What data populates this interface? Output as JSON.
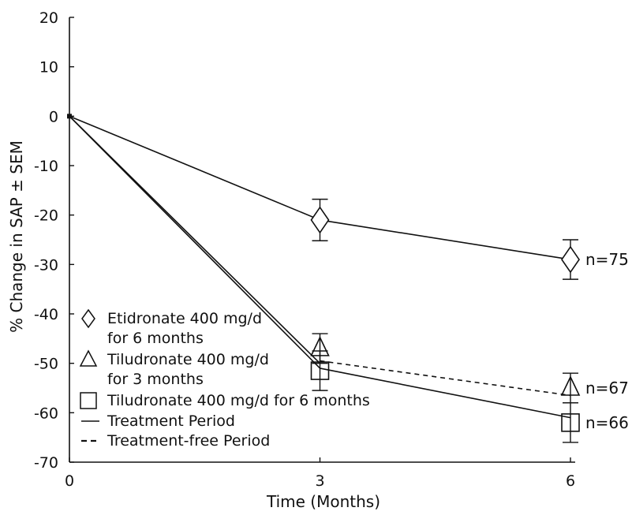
{
  "chart_data": {
    "type": "line",
    "xlabel": "Time (Months)",
    "ylabel": "% Change in SAP ± SEM",
    "xlim": [
      0,
      6
    ],
    "ylim": [
      -70,
      20
    ],
    "x_ticks": [
      0,
      3,
      6
    ],
    "y_ticks": [
      20,
      10,
      0,
      -10,
      -20,
      -30,
      -40,
      -50,
      -60,
      -70
    ],
    "grid": false,
    "legend_position": "bottom-left",
    "series": [
      {
        "name": "Etidronate 400 mg/d for 6 months",
        "name_lines": [
          "Etidronate 400 mg/d",
          "for 6 months"
        ],
        "marker": "diamond",
        "x": [
          0,
          3,
          6
        ],
        "y": [
          0,
          -21,
          -29
        ],
        "error": [
          0,
          4.2,
          4.0
        ],
        "end_label": "n=75"
      },
      {
        "name": "Tiludronate 400 mg/d for 3 months",
        "name_lines": [
          "Tiludronate 400 mg/d",
          "for 3 months"
        ],
        "marker": "triangle",
        "x": [
          0,
          3,
          6
        ],
        "y": [
          0,
          -47,
          -55
        ],
        "error": [
          0,
          3.0,
          3.0
        ],
        "end_label": "n=67"
      },
      {
        "name": "Tiludronate 400 mg/d for 6 months",
        "name_lines": [
          "Tiludronate 400 mg/d for 6 months"
        ],
        "marker": "square",
        "x": [
          0,
          3,
          6
        ],
        "y": [
          0,
          -51.5,
          -62
        ],
        "error": [
          0,
          4.0,
          4.0
        ],
        "end_label": "n=66"
      }
    ],
    "line_styles": [
      {
        "name": "Treatment Period",
        "style": "solid"
      },
      {
        "name": "Treatment-free Period",
        "style": "dashed"
      }
    ],
    "segments": [
      {
        "from": [
          0,
          0
        ],
        "to": [
          3,
          -21
        ],
        "style": "solid"
      },
      {
        "from": [
          3,
          -21
        ],
        "to": [
          6,
          -29
        ],
        "style": "solid"
      },
      {
        "from": [
          0,
          0
        ],
        "to": [
          3,
          -50
        ],
        "style": "solid"
      },
      {
        "from": [
          0,
          0
        ],
        "to": [
          3,
          -51
        ],
        "style": "solid"
      },
      {
        "from": [
          3,
          -51
        ],
        "to": [
          6,
          -61
        ],
        "style": "solid"
      },
      {
        "from": [
          3,
          -49.5
        ],
        "to": [
          6,
          -56.5
        ],
        "style": "dashed"
      }
    ]
  }
}
